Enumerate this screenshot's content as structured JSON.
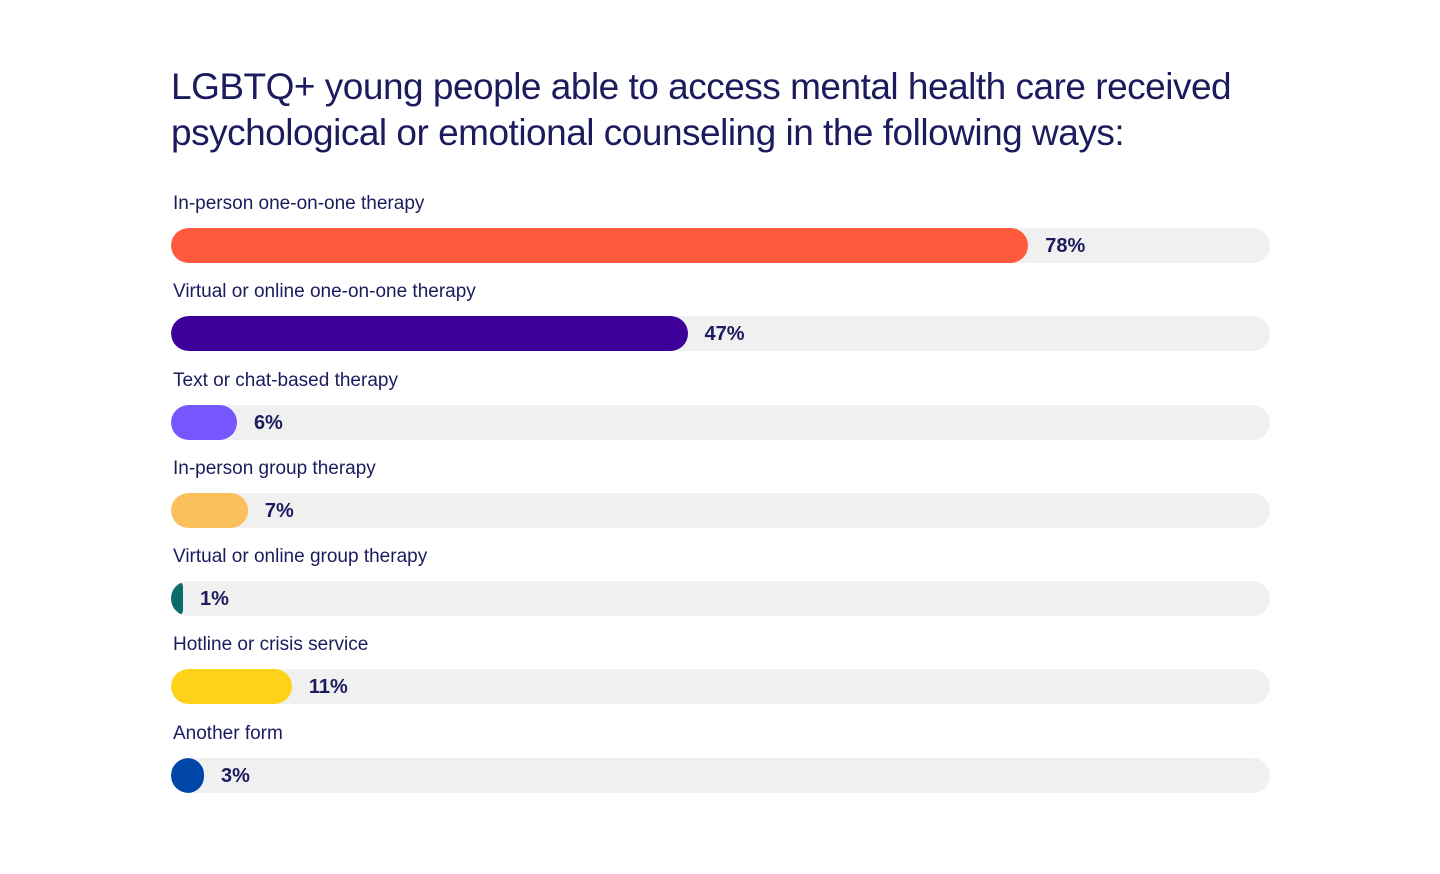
{
  "chart_data": {
    "type": "bar",
    "orientation": "horizontal",
    "title": "LGBTQ+ young people able to access mental health care received psychological or emotional counseling in the following ways:",
    "categories": [
      "In-person one-on-one therapy",
      "Virtual or online one-on-one therapy",
      "Text or chat-based therapy",
      "In-person group therapy",
      "Virtual or online group therapy",
      "Hotline or crisis service",
      "Another form"
    ],
    "values": [
      78,
      47,
      6,
      7,
      1,
      11,
      3
    ],
    "value_labels": [
      "78%",
      "47%",
      "6%",
      "7%",
      "1%",
      "11%",
      "3%"
    ],
    "colors": [
      "#ff5a3c",
      "#3d0099",
      "#7556ff",
      "#fbbf5b",
      "#0e6b6b",
      "#ffd21a",
      "#0046a8"
    ],
    "track_color": "#f0f0f0",
    "xlim": [
      0,
      100
    ],
    "unit": "%",
    "grid": false,
    "legend": "none"
  }
}
